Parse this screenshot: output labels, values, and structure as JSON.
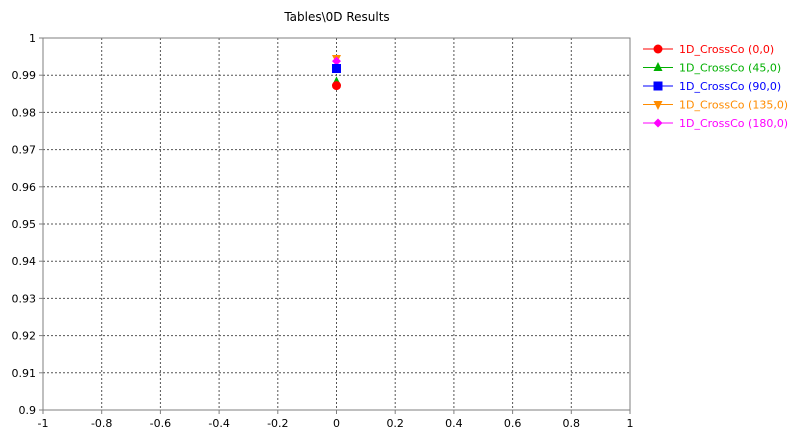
{
  "chart_data": {
    "type": "scatter",
    "title": "Tables\\0D Results",
    "xlabel": "",
    "ylabel": "",
    "xlim": [
      -1,
      1
    ],
    "ylim": [
      0.9,
      1
    ],
    "x_ticks": [
      -1,
      -0.8,
      -0.6,
      -0.4,
      -0.2,
      0,
      0.2,
      0.4,
      0.6,
      0.8,
      1
    ],
    "x_tick_labels": [
      "-1",
      "-0.8",
      "-0.6",
      "-0.4",
      "-0.2",
      "0",
      "0.2",
      "0.4",
      "0.6",
      "0.8",
      "1"
    ],
    "y_ticks": [
      0.9,
      0.91,
      0.92,
      0.93,
      0.94,
      0.95,
      0.96,
      0.97,
      0.98,
      0.99,
      1
    ],
    "y_tick_labels": [
      "0.9",
      "0.91",
      "0.92",
      "0.93",
      "0.94",
      "0.95",
      "0.96",
      "0.97",
      "0.98",
      "0.99",
      "1"
    ],
    "grid": true,
    "legend_position": "right",
    "series": [
      {
        "name": "1D_CrossCo (0,0)",
        "color": "#ff0000",
        "marker": "circle",
        "points": [
          {
            "x": 0,
            "y": 0.9872
          }
        ]
      },
      {
        "name": "1D_CrossCo (45,0)",
        "color": "#00b000",
        "marker": "triangle-up",
        "points": [
          {
            "x": 0,
            "y": 0.9882
          }
        ]
      },
      {
        "name": "1D_CrossCo (90,0)",
        "color": "#0000ff",
        "marker": "square",
        "points": [
          {
            "x": 0,
            "y": 0.9918
          }
        ]
      },
      {
        "name": "1D_CrossCo (135,0)",
        "color": "#ff8c00",
        "marker": "triangle-down",
        "points": [
          {
            "x": 0,
            "y": 0.9945
          }
        ]
      },
      {
        "name": "1D_CrossCo (180,0)",
        "color": "#ff00ff",
        "marker": "diamond",
        "points": [
          {
            "x": 0,
            "y": 0.9938
          }
        ]
      }
    ]
  }
}
